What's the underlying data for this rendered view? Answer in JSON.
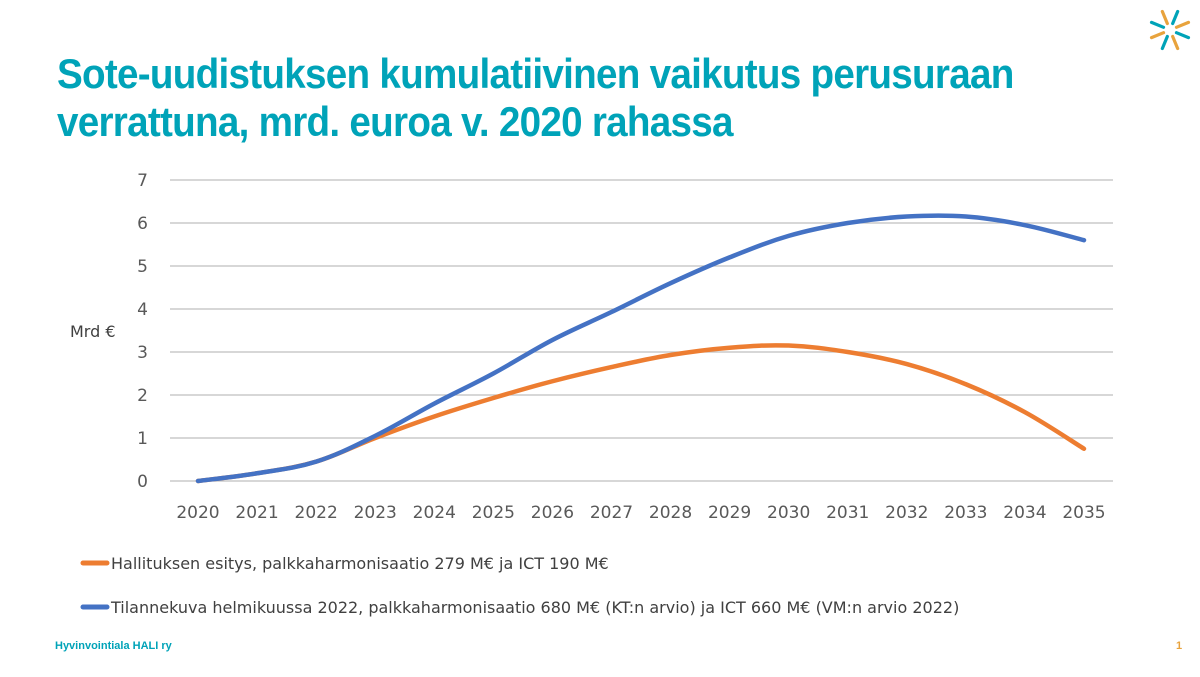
{
  "title": "Sote-uudistuksen kumulatiivinen vaikutus perusuraan verrattuna, mrd. euroa v. 2020 rahassa",
  "footer": {
    "organization": "Hyvinvointiala HALI ry",
    "page_number": "1"
  },
  "logo": {
    "icon": "starburst-logo-icon",
    "colors": [
      "#00A3B8",
      "#E8A33D"
    ]
  },
  "chart_data": {
    "type": "line",
    "title": "",
    "xlabel": "",
    "ylabel": "Mrd €",
    "x": [
      "2020",
      "2021",
      "2022",
      "2023",
      "2024",
      "2025",
      "2026",
      "2027",
      "2028",
      "2029",
      "2030",
      "2031",
      "2032",
      "2033",
      "2034",
      "2035"
    ],
    "ylim": [
      0,
      7
    ],
    "yticks": [
      "0",
      "1",
      "2",
      "3",
      "4",
      "5",
      "6",
      "7"
    ],
    "grid": true,
    "legend_position": "bottom",
    "series": [
      {
        "name": "Hallituksen esitys, palkkaharmonisaatio 279 M€ ja ICT 190 M€",
        "color": "#ED7D31",
        "values": [
          0,
          0.18,
          0.45,
          1.0,
          1.5,
          1.93,
          2.32,
          2.65,
          2.93,
          3.1,
          3.15,
          3.0,
          2.72,
          2.25,
          1.6,
          0.75
        ]
      },
      {
        "name": "Tilannekuva helmikuussa 2022, palkkaharmonisaatio 680 M€ (KT:n arvio) ja ICT 660 M€ (VM:n arvio 2022)",
        "color": "#4472C4",
        "values": [
          0,
          0.18,
          0.45,
          1.05,
          1.8,
          2.5,
          3.28,
          3.93,
          4.6,
          5.2,
          5.7,
          6.0,
          6.15,
          6.15,
          5.95,
          5.6
        ]
      }
    ]
  }
}
